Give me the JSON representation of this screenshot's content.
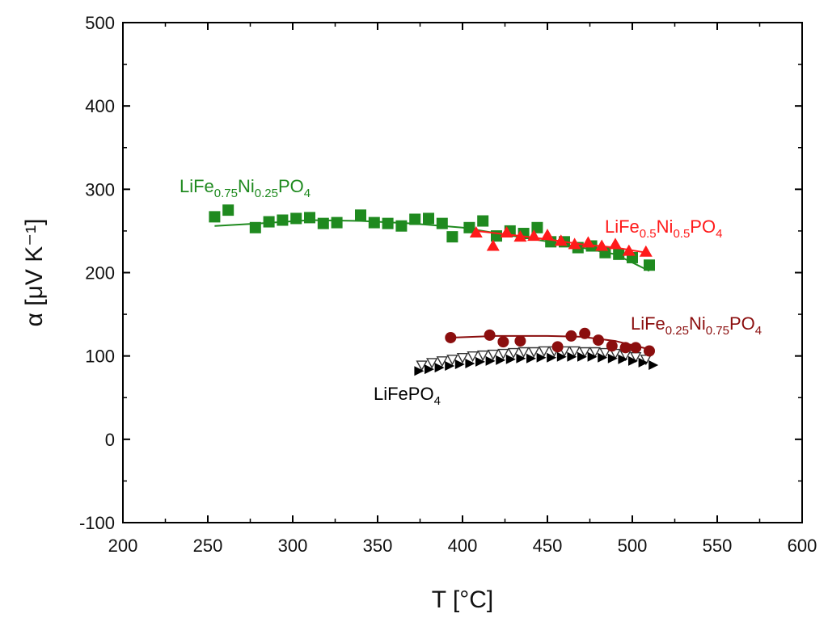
{
  "chart_data": {
    "type": "scatter",
    "title": "",
    "xlabel": "T [°C]",
    "ylabel": "α [μV K⁻¹]",
    "xlim": [
      200,
      600
    ],
    "ylim": [
      -100,
      500
    ],
    "x_ticks": [
      200,
      250,
      300,
      350,
      400,
      450,
      500,
      550,
      600
    ],
    "y_ticks": [
      -100,
      0,
      100,
      200,
      300,
      400,
      500
    ],
    "grid": false,
    "series": [
      {
        "name": "LiFe0.75Ni0.25PO4",
        "label_base": "LiFe",
        "label_sub1": "0.75",
        "label_mid": "Ni",
        "label_sub2": "0.25",
        "label_end": "PO",
        "label_sub3": "4",
        "color": "#1f8a1f",
        "marker": "square",
        "x": [
          254,
          262,
          278,
          286,
          294,
          302,
          310,
          318,
          326,
          340,
          348,
          356,
          364,
          372,
          380,
          388,
          394,
          404,
          412,
          420,
          428,
          436,
          444,
          452,
          460,
          468,
          476,
          484,
          492,
          500,
          510
        ],
        "y": [
          267,
          275,
          254,
          261,
          263,
          265,
          266,
          259,
          260,
          269,
          260,
          259,
          256,
          264,
          265,
          259,
          243,
          254,
          262,
          244,
          250,
          247,
          254,
          237,
          237,
          230,
          232,
          224,
          222,
          218,
          209
        ],
        "fit": [
          [
            254,
            256
          ],
          [
            280,
            259
          ],
          [
            310,
            263
          ],
          [
            340,
            262
          ],
          [
            370,
            259
          ],
          [
            400,
            254
          ],
          [
            430,
            244
          ],
          [
            460,
            234
          ],
          [
            490,
            222
          ],
          [
            510,
            202
          ]
        ]
      },
      {
        "name": "LiFe0.5Ni0.5PO4",
        "label_base": "LiFe",
        "label_sub1": "0.5",
        "label_mid": "Ni",
        "label_sub2": "0.5",
        "label_end": "PO",
        "label_sub3": "4",
        "color": "#ff1a1a",
        "marker": "triangle",
        "x": [
          408,
          418,
          426,
          434,
          442,
          450,
          458,
          466,
          474,
          482,
          490,
          498,
          508
        ],
        "y": [
          248,
          232,
          248,
          243,
          244,
          245,
          238,
          234,
          236,
          232,
          234,
          226,
          225
        ],
        "fit": [
          [
            408,
            250
          ],
          [
            430,
            245
          ],
          [
            450,
            240
          ],
          [
            470,
            234
          ],
          [
            490,
            230
          ],
          [
            508,
            224
          ]
        ]
      },
      {
        "name": "LiFe0.25Ni0.75PO4",
        "label_base": "LiFe",
        "label_sub1": "0.25",
        "label_mid": "Ni",
        "label_sub2": "0.75",
        "label_end": "PO",
        "label_sub3": "4",
        "color": "#8b0e0e",
        "marker": "circle",
        "x": [
          393,
          416,
          424,
          434,
          456,
          464,
          472,
          480,
          488,
          496,
          502,
          510
        ],
        "y": [
          122,
          125,
          117,
          118,
          111,
          124,
          127,
          119,
          112,
          110,
          110,
          106
        ],
        "fit": [
          [
            393,
            122
          ],
          [
            420,
            124
          ],
          [
            450,
            124
          ],
          [
            470,
            123
          ],
          [
            490,
            118
          ],
          [
            510,
            108
          ]
        ]
      },
      {
        "name": "LiFePO4 (open triangles)",
        "color": "#333333",
        "marker": "open-triangle",
        "x": [
          376,
          382,
          388,
          394,
          400,
          406,
          412,
          418,
          424,
          430,
          436,
          442,
          448,
          454,
          460,
          466,
          472,
          478,
          484,
          490,
          496,
          502,
          508
        ],
        "y": [
          89,
          92,
          94,
          96,
          98,
          100,
          101,
          102,
          103,
          104,
          105,
          105,
          106,
          106,
          106,
          106,
          105,
          105,
          104,
          103,
          101,
          99,
          96
        ]
      },
      {
        "name": "LiFePO4",
        "label_base": "LiFePO",
        "label_sub3": "4",
        "color": "#000000",
        "marker": "right-triangle",
        "x": [
          374,
          380,
          386,
          392,
          398,
          404,
          410,
          416,
          422,
          428,
          434,
          440,
          446,
          452,
          458,
          464,
          470,
          476,
          482,
          488,
          494,
          500,
          506,
          512
        ],
        "y": [
          82,
          84,
          86,
          88,
          90,
          91,
          93,
          94,
          95,
          96,
          97,
          97,
          98,
          98,
          99,
          99,
          99,
          99,
          98,
          97,
          96,
          94,
          92,
          89
        ]
      }
    ],
    "label_positions": [
      "upper-left",
      "right",
      "right-middle",
      "",
      "lower-left"
    ]
  }
}
